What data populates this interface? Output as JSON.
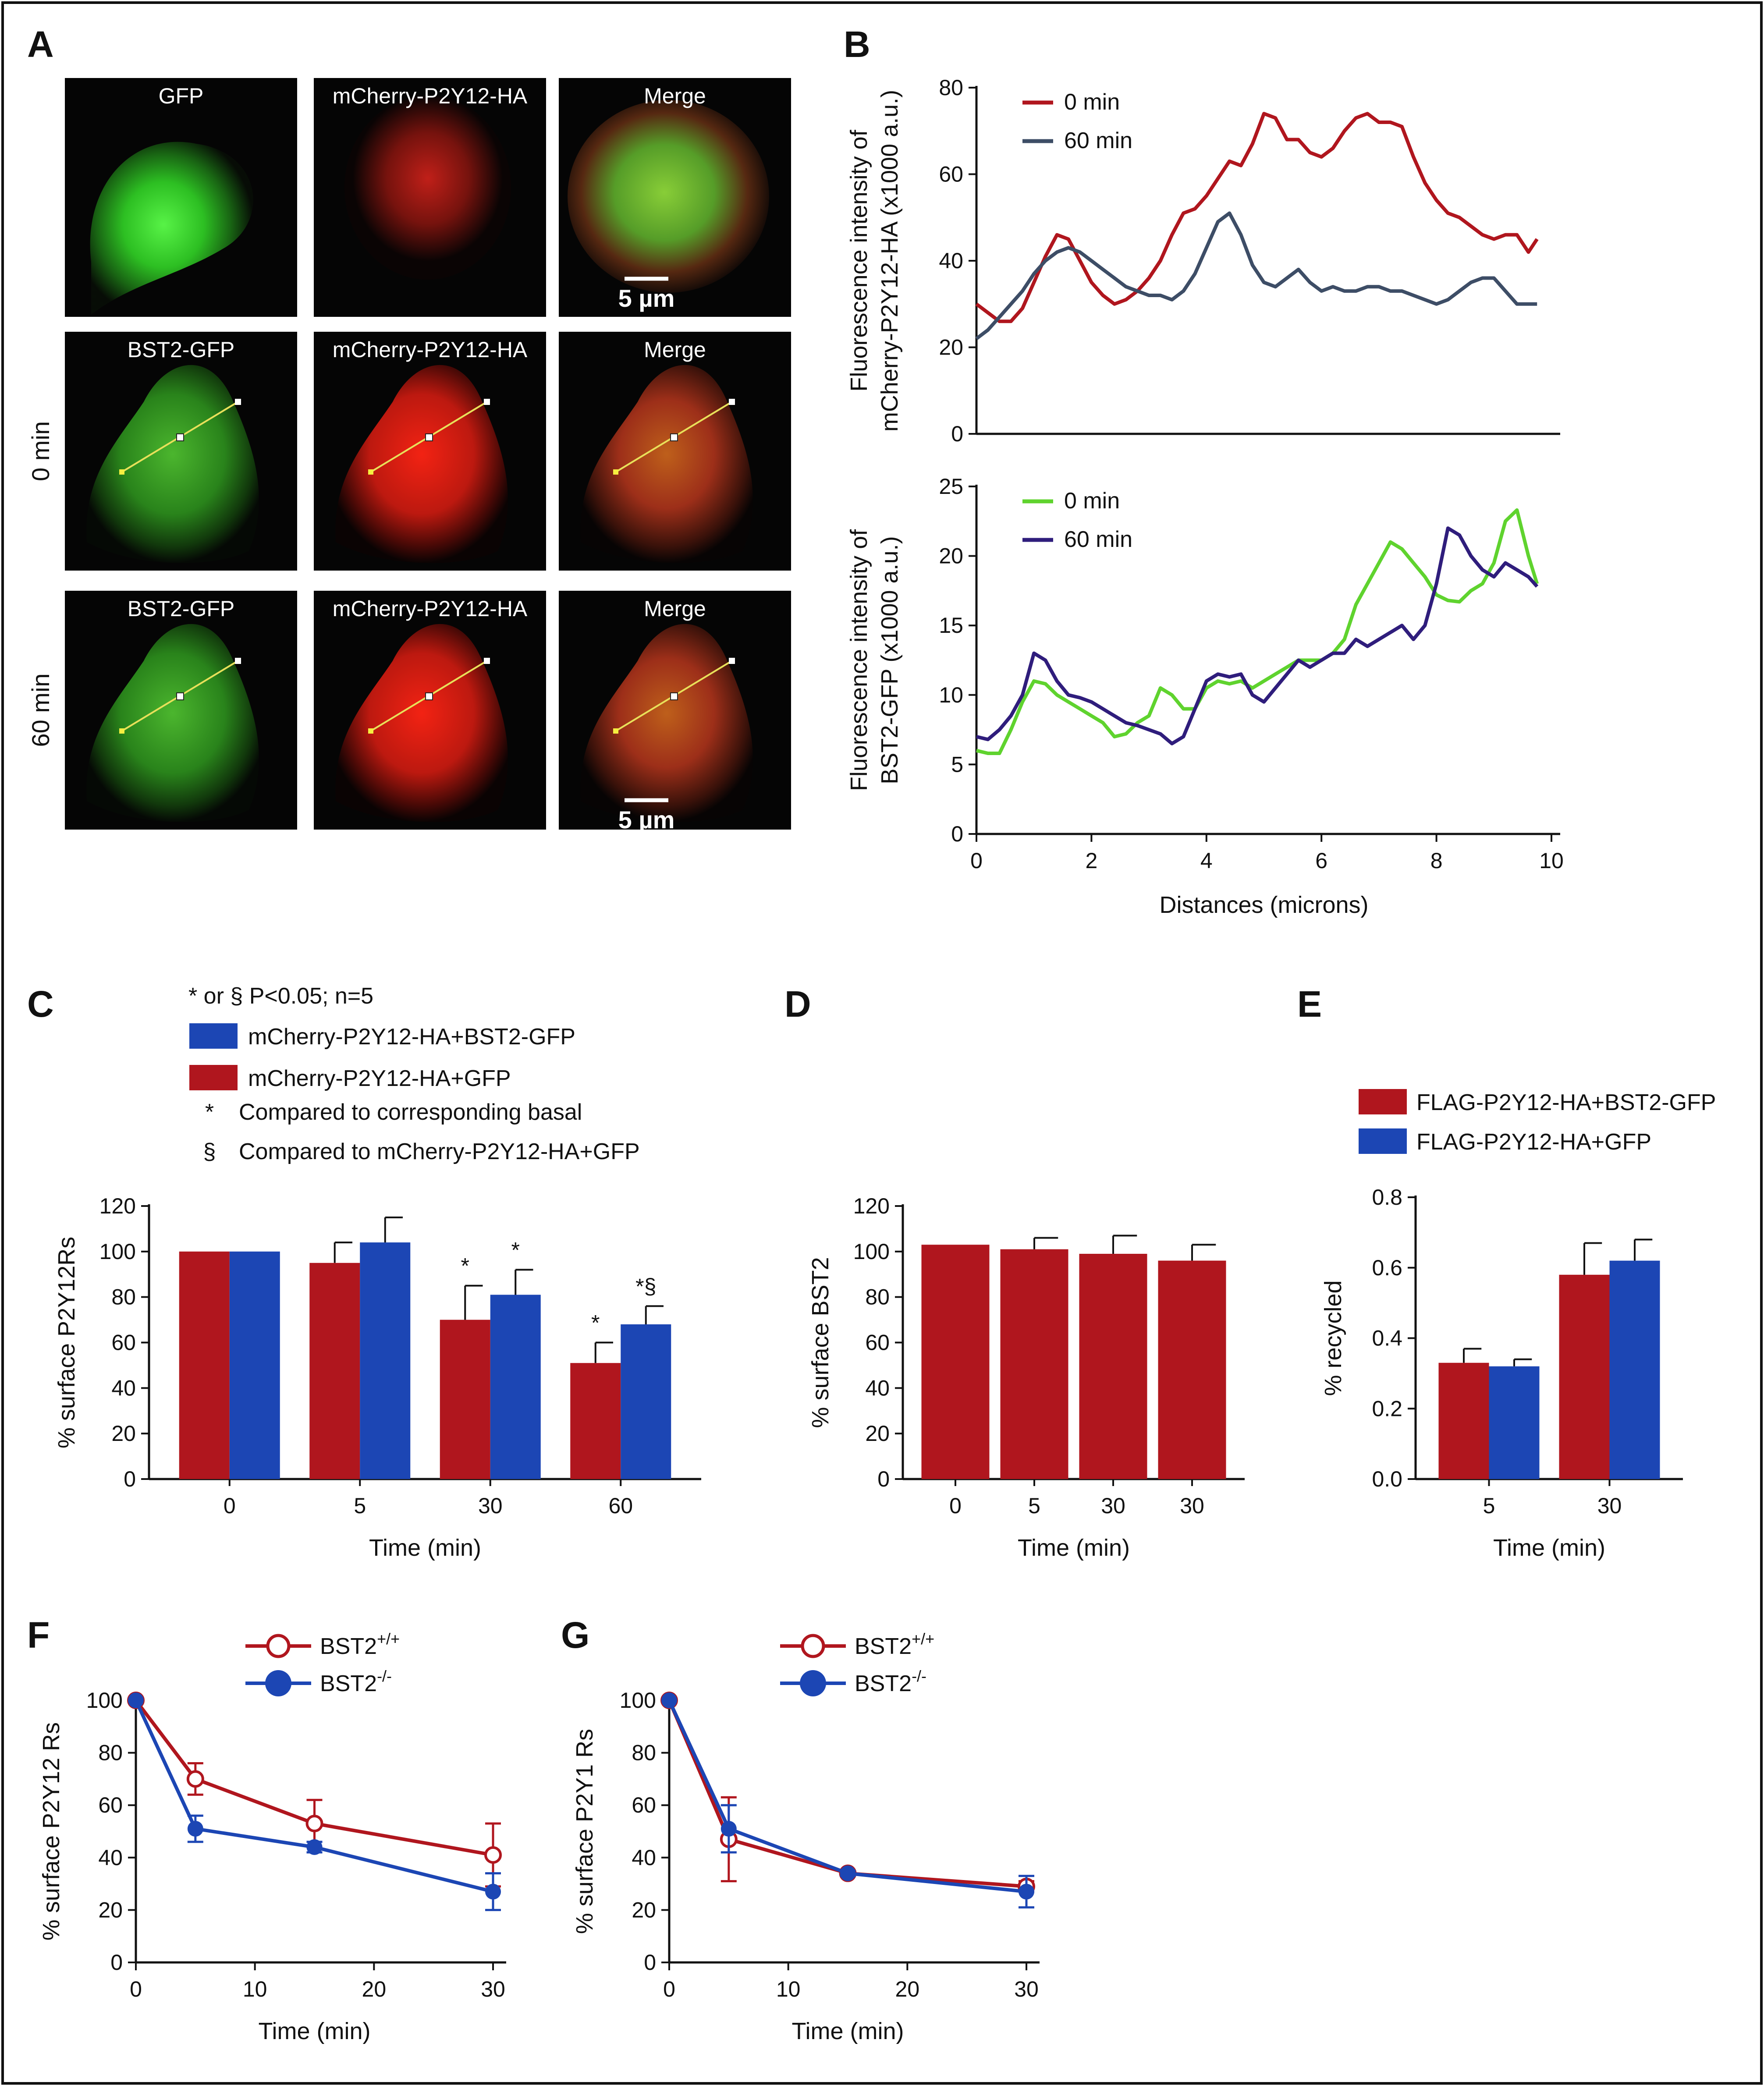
{
  "panels": {
    "A": "A",
    "B": "B",
    "C": "C",
    "D": "D",
    "E": "E",
    "F": "F",
    "G": "G"
  },
  "colors": {
    "red": "#b0161e",
    "blue": "#1c46b4",
    "slate": "#3d4d66",
    "green": "#5fd32e",
    "purple": "#2f1d7c",
    "axis": "#111111"
  },
  "microscopy": {
    "rows": [
      {
        "label": "",
        "cells": [
          {
            "label": "GFP",
            "kind": "green-blob"
          },
          {
            "label": "mCherry-P2Y12-HA",
            "kind": "red-sparse"
          },
          {
            "label": "Merge",
            "kind": "merge-blob",
            "scale": "5 µm"
          }
        ]
      },
      {
        "label": "0 min",
        "cells": [
          {
            "label": "BST2-GFP",
            "kind": "green-cell"
          },
          {
            "label": "mCherry-P2Y12-HA",
            "kind": "red-cell"
          },
          {
            "label": "Merge",
            "kind": "merge-cell"
          }
        ]
      },
      {
        "label": "60 min",
        "cells": [
          {
            "label": "BST2-GFP",
            "kind": "green-cell"
          },
          {
            "label": "mCherry-P2Y12-HA",
            "kind": "red-cell"
          },
          {
            "label": "Merge",
            "kind": "merge-cell",
            "scale": "5 µm"
          }
        ]
      }
    ]
  },
  "chart_data": [
    {
      "id": "B_top",
      "type": "line",
      "ylabel_line1": "Fluorescence intensity of",
      "ylabel_line2": "mCherry-P2Y12-HA (x1000 a.u.)",
      "xlim": [
        0,
        10
      ],
      "ylim": [
        0,
        80
      ],
      "yticks": [
        0,
        20,
        40,
        60,
        80
      ],
      "series": [
        {
          "name": "0 min",
          "color": "#b0161e",
          "x": [
            0,
            0.2,
            0.4,
            0.6,
            0.8,
            1.0,
            1.2,
            1.4,
            1.6,
            1.8,
            2.0,
            2.2,
            2.4,
            2.6,
            2.8,
            3.0,
            3.2,
            3.4,
            3.6,
            3.8,
            4.0,
            4.2,
            4.4,
            4.6,
            4.8,
            5.0,
            5.2,
            5.4,
            5.6,
            5.8,
            6.0,
            6.2,
            6.4,
            6.6,
            6.8,
            7.0,
            7.2,
            7.4,
            7.6,
            7.8,
            8.0,
            8.2,
            8.4,
            8.6,
            8.8,
            9.0,
            9.2,
            9.4,
            9.6,
            9.75
          ],
          "y": [
            30,
            28,
            26,
            26,
            29,
            35,
            41,
            46,
            45,
            40,
            35,
            32,
            30,
            31,
            33,
            36,
            40,
            46,
            51,
            52,
            55,
            59,
            63,
            62,
            67,
            74,
            73,
            68,
            68,
            65,
            64,
            66,
            70,
            73,
            74,
            72,
            72,
            71,
            64,
            58,
            54,
            51,
            50,
            48,
            46,
            45,
            46,
            46,
            42,
            45
          ]
        },
        {
          "name": "60 min",
          "color": "#3d4d66",
          "x": [
            0,
            0.2,
            0.4,
            0.6,
            0.8,
            1.0,
            1.2,
            1.4,
            1.6,
            1.8,
            2.0,
            2.2,
            2.4,
            2.6,
            2.8,
            3.0,
            3.2,
            3.4,
            3.6,
            3.8,
            4.0,
            4.2,
            4.4,
            4.6,
            4.8,
            5.0,
            5.2,
            5.4,
            5.6,
            5.8,
            6.0,
            6.2,
            6.4,
            6.6,
            6.8,
            7.0,
            7.2,
            7.4,
            7.6,
            7.8,
            8.0,
            8.2,
            8.4,
            8.6,
            8.8,
            9.0,
            9.2,
            9.4,
            9.6,
            9.75
          ],
          "y": [
            22,
            24,
            27,
            30,
            33,
            37,
            40,
            42,
            43,
            42,
            40,
            38,
            36,
            34,
            33,
            32,
            32,
            31,
            33,
            37,
            43,
            49,
            51,
            46,
            39,
            35,
            34,
            36,
            38,
            35,
            33,
            34,
            33,
            33,
            34,
            34,
            33,
            33,
            32,
            31,
            30,
            31,
            33,
            35,
            36,
            36,
            33,
            30,
            30,
            30
          ]
        }
      ]
    },
    {
      "id": "B_bottom",
      "type": "line",
      "ylabel_line1": "Fluorescence intensity of",
      "ylabel_line2": "BST2-GFP (x1000 a.u.)",
      "xlabel": "Distances (microns)",
      "xlim": [
        0,
        10
      ],
      "xticks": [
        0,
        2,
        4,
        6,
        8,
        10
      ],
      "ylim": [
        0,
        25
      ],
      "yticks": [
        0,
        5,
        10,
        15,
        20,
        25
      ],
      "series": [
        {
          "name": "0 min",
          "color": "#5fd32e",
          "x": [
            0,
            0.2,
            0.4,
            0.6,
            0.8,
            1.0,
            1.2,
            1.4,
            1.6,
            1.8,
            2.0,
            2.2,
            2.4,
            2.6,
            2.8,
            3.0,
            3.2,
            3.4,
            3.6,
            3.8,
            4.0,
            4.2,
            4.4,
            4.6,
            4.8,
            5.0,
            5.2,
            5.4,
            5.6,
            5.8,
            6.0,
            6.2,
            6.4,
            6.6,
            6.8,
            7.0,
            7.2,
            7.4,
            7.6,
            7.8,
            8.0,
            8.2,
            8.4,
            8.6,
            8.8,
            9.0,
            9.2,
            9.4,
            9.6,
            9.75
          ],
          "y": [
            6,
            5.8,
            5.8,
            7.5,
            9.5,
            11,
            10.8,
            10,
            9.5,
            9,
            8.5,
            8,
            7,
            7.2,
            8,
            8.5,
            10.5,
            10,
            9,
            9,
            10.5,
            11,
            10.8,
            11,
            10.5,
            11,
            11.5,
            12,
            12.5,
            12.5,
            12.5,
            13,
            14,
            16.5,
            18,
            19.5,
            21,
            20.5,
            19.5,
            18.5,
            17.2,
            16.8,
            16.7,
            17.5,
            18,
            19.5,
            22.5,
            23.3,
            20,
            18
          ]
        },
        {
          "name": "60 min",
          "color": "#2f1d7c",
          "x": [
            0,
            0.2,
            0.4,
            0.6,
            0.8,
            1.0,
            1.2,
            1.4,
            1.6,
            1.8,
            2.0,
            2.2,
            2.4,
            2.6,
            2.8,
            3.0,
            3.2,
            3.4,
            3.6,
            3.8,
            4.0,
            4.2,
            4.4,
            4.6,
            4.8,
            5.0,
            5.2,
            5.4,
            5.6,
            5.8,
            6.0,
            6.2,
            6.4,
            6.6,
            6.8,
            7.0,
            7.2,
            7.4,
            7.6,
            7.8,
            8.0,
            8.2,
            8.4,
            8.6,
            8.8,
            9.0,
            9.2,
            9.4,
            9.6,
            9.75
          ],
          "y": [
            7,
            6.8,
            7.5,
            8.5,
            10,
            13,
            12.5,
            11,
            10,
            9.8,
            9.5,
            9,
            8.5,
            8,
            7.8,
            7.5,
            7.2,
            6.5,
            7,
            9,
            11,
            11.5,
            11.3,
            11.5,
            10,
            9.5,
            10.5,
            11.5,
            12.5,
            12,
            12.5,
            13,
            13,
            14,
            13.5,
            14,
            14.5,
            15,
            14,
            15,
            18,
            22,
            21.5,
            20,
            19,
            18.5,
            19.5,
            19,
            18.5,
            17.8
          ]
        }
      ]
    },
    {
      "id": "C",
      "type": "bar",
      "note": "* or § P<0.05; n=5",
      "legend": [
        {
          "name": "mCherry-P2Y12-HA+BST2-GFP",
          "color": "#1c46b4"
        },
        {
          "name": "mCherry-P2Y12-HA+GFP",
          "color": "#b0161e"
        }
      ],
      "footnotes": [
        {
          "symbol": "*",
          "text": "Compared to corresponding basal"
        },
        {
          "symbol": "§",
          "text": "Compared to mCherry-P2Y12-HA+GFP"
        }
      ],
      "ylabel": "% surface P2Y12Rs",
      "xlabel": "Time (min)",
      "categories": [
        "0",
        "5",
        "30",
        "60"
      ],
      "ylim": [
        0,
        120
      ],
      "yticks": [
        0,
        20,
        40,
        60,
        80,
        100,
        120
      ],
      "series": [
        {
          "name": "mCherry-P2Y12-HA+GFP",
          "color": "#b0161e",
          "values": [
            100,
            95,
            70,
            51
          ],
          "errors": [
            0,
            9,
            15,
            9
          ],
          "sig": [
            "",
            "",
            "*",
            "*"
          ]
        },
        {
          "name": "mCherry-P2Y12-HA+BST2-GFP",
          "color": "#1c46b4",
          "values": [
            100,
            104,
            81,
            68
          ],
          "errors": [
            0,
            11,
            11,
            8
          ],
          "sig": [
            "",
            "",
            "*",
            "*§"
          ]
        }
      ]
    },
    {
      "id": "D",
      "type": "bar",
      "ylabel": "% surface BST2",
      "xlabel": "Time (min)",
      "categories": [
        "0",
        "5",
        "30",
        "30"
      ],
      "ylim": [
        0,
        120
      ],
      "yticks": [
        0,
        20,
        40,
        60,
        80,
        100,
        120
      ],
      "series": [
        {
          "name": "BST2",
          "color": "#b0161e",
          "values": [
            103,
            101,
            99,
            96
          ],
          "errors": [
            0,
            5,
            8,
            7
          ]
        }
      ]
    },
    {
      "id": "E",
      "type": "bar",
      "legend": [
        {
          "name": "FLAG-P2Y12-HA+BST2-GFP",
          "color": "#b0161e"
        },
        {
          "name": "FLAG-P2Y12-HA+GFP",
          "color": "#1c46b4"
        }
      ],
      "ylabel": "% recycled",
      "xlabel": "Time (min)",
      "categories": [
        "5",
        "30"
      ],
      "ylim": [
        0,
        0.8
      ],
      "yticks": [
        "0.0",
        "0.2",
        "0.4",
        "0.6",
        "0.8"
      ],
      "series": [
        {
          "name": "FLAG-P2Y12-HA+BST2-GFP",
          "color": "#b0161e",
          "values": [
            0.33,
            0.58
          ],
          "errors": [
            0.04,
            0.09
          ]
        },
        {
          "name": "FLAG-P2Y12-HA+GFP",
          "color": "#1c46b4",
          "values": [
            0.32,
            0.62
          ],
          "errors": [
            0.02,
            0.06
          ]
        }
      ]
    },
    {
      "id": "F",
      "type": "line",
      "ylabel": "% surface P2Y12 Rs",
      "xlabel": "Time (min)",
      "xlim": [
        0,
        30
      ],
      "xticks": [
        0,
        10,
        20,
        30
      ],
      "ylim": [
        0,
        100
      ],
      "yticks": [
        0,
        20,
        40,
        60,
        80,
        100
      ],
      "series": [
        {
          "name": "BST2",
          "sup": "+/+",
          "color": "#b0161e",
          "marker": "open",
          "x": [
            0,
            5,
            15,
            30
          ],
          "y": [
            100,
            70,
            53,
            41
          ],
          "errors": [
            0,
            6,
            9,
            12
          ]
        },
        {
          "name": "BST2",
          "sup": "-/-",
          "color": "#1c46b4",
          "marker": "filled",
          "x": [
            0,
            5,
            15,
            30
          ],
          "y": [
            100,
            51,
            44,
            27
          ],
          "errors": [
            0,
            5,
            2,
            7
          ]
        }
      ]
    },
    {
      "id": "G",
      "type": "line",
      "ylabel": "% surface P2Y1 Rs",
      "xlabel": "Time (min)",
      "xlim": [
        0,
        30
      ],
      "xticks": [
        0,
        10,
        20,
        30
      ],
      "ylim": [
        0,
        100
      ],
      "yticks": [
        0,
        20,
        40,
        60,
        80,
        100
      ],
      "series": [
        {
          "name": "BST2",
          "sup": "+/+",
          "color": "#b0161e",
          "marker": "open",
          "x": [
            0,
            5,
            15,
            30
          ],
          "y": [
            100,
            47,
            34,
            29
          ],
          "errors": [
            0,
            16,
            1,
            2
          ]
        },
        {
          "name": "BST2",
          "sup": "-/-",
          "color": "#1c46b4",
          "marker": "filled",
          "x": [
            0,
            5,
            15,
            30
          ],
          "y": [
            100,
            51,
            34,
            27
          ],
          "errors": [
            0,
            9,
            1,
            6
          ]
        }
      ]
    }
  ]
}
